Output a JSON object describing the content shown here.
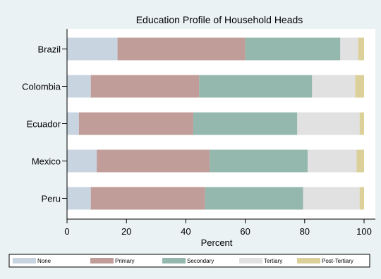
{
  "chart_data": {
    "type": "bar",
    "orientation": "horizontal",
    "stacked": true,
    "title": "Education Profile of Household Heads",
    "xlabel": "Percent",
    "ylabel": "",
    "xlim": [
      0,
      100
    ],
    "xticks": [
      "0",
      "20",
      "40",
      "60",
      "80",
      "100"
    ],
    "categories": [
      "Brazil",
      "Colombia",
      "Ecuador",
      "Mexico",
      "Peru"
    ],
    "series": [
      {
        "name": "None",
        "color": "#c8d4e0",
        "values": [
          17,
          8,
          4,
          10,
          8
        ]
      },
      {
        "name": "Primary",
        "color": "#c09d98",
        "values": [
          43,
          36.5,
          38.5,
          38,
          38.5
        ]
      },
      {
        "name": "Secondary",
        "color": "#95b8ae",
        "values": [
          32,
          38,
          35,
          33,
          33
        ]
      },
      {
        "name": "Tertiary",
        "color": "#e1e1e1",
        "values": [
          6,
          14.5,
          21,
          16.5,
          19
        ]
      },
      {
        "name": "Post-Tertiary",
        "color": "#dbd09a",
        "values": [
          2,
          3,
          1.5,
          2.5,
          1.5
        ]
      }
    ],
    "grid": false,
    "legend_position": "bottom"
  }
}
